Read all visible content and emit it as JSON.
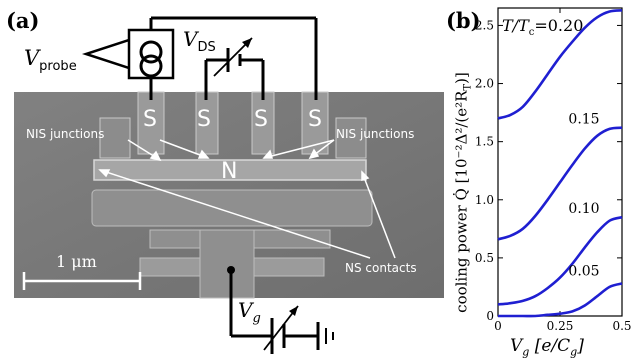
{
  "panel_a": {
    "label": "(a)",
    "v_probe": "V",
    "v_probe_sub": "probe",
    "v_ds": "V",
    "v_ds_sub": "DS",
    "v_g": "V",
    "v_g_sub": "g",
    "s_labels": [
      "S",
      "S",
      "S",
      "S"
    ],
    "n_label": "N",
    "nis_left": "NIS junctions",
    "nis_right": "NIS junctions",
    "ns_contacts": "NS contacts",
    "scale_bar": "1 μm"
  },
  "panel_b": {
    "label": "(b)",
    "y_axis_label": "cooling power  Q̇ [10⁻²Δ²/(e²R",
    "y_axis_label_sub": "T",
    "y_axis_label_end": ")]",
    "x_axis_label_var": "V",
    "x_axis_label_sub": "g",
    "x_axis_label_rest": "  [e/C",
    "x_axis_label_sub2": "g",
    "x_axis_label_end": "]",
    "temperature_prefix": "T/T",
    "temperature_prefix_sub": "c",
    "temperature_first_value": "=0.20"
  },
  "colors": {
    "curve": "#1f1fd1",
    "sem_background": "#7a7a7a",
    "wire": "#000000"
  },
  "chart_data": {
    "type": "line",
    "xlabel": "Vg [e/Cg]",
    "ylabel": "cooling power Q̇ [10^-2 Δ^2/(e^2 R_T)]",
    "xlim": [
      0,
      0.5
    ],
    "ylim": [
      0,
      2.65
    ],
    "x_ticks": [
      "0",
      "0.25",
      "0.5"
    ],
    "y_ticks": [
      "0",
      "0.5",
      "1.0",
      "1.5",
      "2.0",
      "2.5"
    ],
    "x_tick_values": [
      0,
      0.25,
      0.5
    ],
    "y_tick_values": [
      0,
      0.5,
      1.0,
      1.5,
      2.0,
      2.5
    ],
    "series": [
      {
        "name": "0.20",
        "x": [
          0,
          0.05,
          0.1,
          0.15,
          0.2,
          0.25,
          0.3,
          0.35,
          0.4,
          0.45,
          0.5
        ],
        "values": [
          1.7,
          1.73,
          1.8,
          1.93,
          2.08,
          2.23,
          2.36,
          2.48,
          2.57,
          2.62,
          2.63
        ]
      },
      {
        "name": "0.15",
        "x": [
          0,
          0.05,
          0.1,
          0.15,
          0.2,
          0.25,
          0.3,
          0.35,
          0.4,
          0.45,
          0.5
        ],
        "values": [
          0.66,
          0.69,
          0.75,
          0.86,
          1.0,
          1.15,
          1.3,
          1.44,
          1.55,
          1.61,
          1.62
        ]
      },
      {
        "name": "0.10",
        "x": [
          0,
          0.05,
          0.1,
          0.15,
          0.2,
          0.25,
          0.3,
          0.35,
          0.4,
          0.45,
          0.5
        ],
        "values": [
          0.1,
          0.11,
          0.13,
          0.17,
          0.24,
          0.33,
          0.45,
          0.59,
          0.72,
          0.82,
          0.85
        ]
      },
      {
        "name": "0.05",
        "x": [
          0,
          0.05,
          0.1,
          0.15,
          0.2,
          0.25,
          0.3,
          0.35,
          0.4,
          0.45,
          0.5
        ],
        "values": [
          0.0,
          0.0,
          0.0,
          0.0,
          0.01,
          0.02,
          0.04,
          0.09,
          0.17,
          0.25,
          0.28
        ]
      }
    ]
  }
}
